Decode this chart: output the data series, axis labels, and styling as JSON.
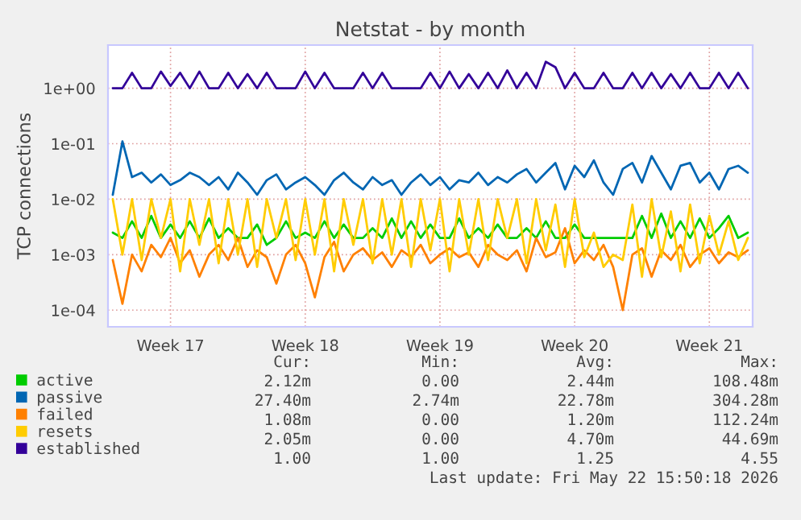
{
  "chart_data": {
    "type": "line",
    "title": "Netstat - by month",
    "ylabel": "TCP connections",
    "categories": [
      null,
      null,
      null,
      null,
      null,
      null,
      "Week 17",
      null,
      null,
      null,
      null,
      null,
      null,
      null,
      null,
      null,
      null,
      null,
      null,
      null,
      "Week 18",
      null,
      null,
      null,
      null,
      null,
      null,
      null,
      null,
      null,
      null,
      null,
      null,
      null,
      "Week 19",
      null,
      null,
      null,
      null,
      null,
      null,
      null,
      null,
      null,
      null,
      null,
      null,
      null,
      "Week 20",
      null,
      null,
      null,
      null,
      null,
      null,
      null,
      null,
      null,
      null,
      null,
      null,
      null,
      "Week 21",
      null,
      null,
      null,
      null
    ],
    "series": [
      {
        "name": "active",
        "color": "#00cc00",
        "values": [
          0.0025,
          0.002,
          0.004,
          0.002,
          0.005,
          0.002,
          0.0035,
          0.002,
          0.004,
          0.002,
          0.0045,
          0.002,
          0.003,
          0.002,
          0.002,
          0.0035,
          0.0015,
          0.002,
          0.004,
          0.002,
          0.0025,
          0.002,
          0.004,
          0.002,
          0.0035,
          0.002,
          0.002,
          0.003,
          0.002,
          0.0045,
          0.002,
          0.004,
          0.002,
          0.0035,
          0.002,
          0.002,
          0.0045,
          0.002,
          0.003,
          0.002,
          0.0035,
          0.002,
          0.002,
          0.003,
          0.002,
          0.004,
          0.002,
          0.002,
          0.0035,
          0.002,
          0.002,
          0.002,
          0.002,
          0.002,
          0.002,
          0.005,
          0.002,
          0.0055,
          0.002,
          0.004,
          0.002,
          0.0045,
          0.002,
          0.003,
          0.005,
          0.002,
          0.0025
        ]
      },
      {
        "name": "passive",
        "color": "#0066b3",
        "values": [
          0.012,
          0.11,
          0.025,
          0.03,
          0.02,
          0.028,
          0.018,
          0.022,
          0.03,
          0.025,
          0.018,
          0.025,
          0.015,
          0.03,
          0.02,
          0.012,
          0.022,
          0.028,
          0.015,
          0.02,
          0.025,
          0.018,
          0.012,
          0.022,
          0.03,
          0.02,
          0.015,
          0.025,
          0.018,
          0.022,
          0.012,
          0.02,
          0.028,
          0.018,
          0.025,
          0.015,
          0.022,
          0.02,
          0.03,
          0.018,
          0.025,
          0.02,
          0.028,
          0.035,
          0.02,
          0.03,
          0.045,
          0.015,
          0.04,
          0.025,
          0.05,
          0.02,
          0.012,
          0.035,
          0.045,
          0.02,
          0.06,
          0.03,
          0.015,
          0.04,
          0.045,
          0.02,
          0.03,
          0.015,
          0.035,
          0.04,
          0.03
        ]
      },
      {
        "name": "failed",
        "color": "#ff8000",
        "values": [
          0.0008,
          0.00013,
          0.001,
          0.0005,
          0.0015,
          0.0009,
          0.002,
          0.0007,
          0.0012,
          0.0004,
          0.001,
          0.0015,
          0.0008,
          0.002,
          0.0006,
          0.0012,
          0.0009,
          0.0003,
          0.001,
          0.0015,
          0.0007,
          0.00017,
          0.0009,
          0.0017,
          0.0005,
          0.001,
          0.0013,
          0.0008,
          0.0011,
          0.0006,
          0.0012,
          0.0009,
          0.0015,
          0.0007,
          0.001,
          0.0013,
          0.0009,
          0.0011,
          0.0006,
          0.0015,
          0.001,
          0.0008,
          0.0012,
          0.0005,
          0.002,
          0.0009,
          0.0011,
          0.003,
          0.0007,
          0.0012,
          0.0008,
          0.0015,
          0.0006,
          0.0001,
          0.001,
          0.0013,
          0.0004,
          0.0012,
          0.0008,
          0.0015,
          0.0006,
          0.001,
          0.0013,
          0.0007,
          0.0011,
          0.0009,
          0.0012
        ]
      },
      {
        "name": "resets",
        "color": "#ffcc00",
        "values": [
          0.01,
          0.001,
          0.01,
          0.0008,
          0.01,
          0.002,
          0.01,
          0.0005,
          0.01,
          0.0015,
          0.01,
          0.0007,
          0.01,
          0.001,
          0.01,
          0.0006,
          0.01,
          0.002,
          0.01,
          0.0008,
          0.01,
          0.001,
          0.01,
          0.0005,
          0.01,
          0.0015,
          0.01,
          0.0007,
          0.01,
          0.001,
          0.01,
          0.0006,
          0.01,
          0.0012,
          0.01,
          0.0005,
          0.01,
          0.001,
          0.01,
          0.0008,
          0.01,
          0.002,
          0.01,
          0.0007,
          0.01,
          0.0012,
          0.008,
          0.0006,
          0.01,
          0.0009,
          0.0025,
          0.0006,
          0.001,
          0.0008,
          0.008,
          0.0004,
          0.01,
          0.0009,
          0.006,
          0.0005,
          0.008,
          0.0007,
          0.005,
          0.001,
          0.004,
          0.0008,
          0.002
        ]
      },
      {
        "name": "established",
        "color": "#330099",
        "values": [
          1,
          1,
          1.9,
          1,
          1,
          2,
          1.1,
          1.9,
          1,
          2,
          1,
          1,
          1.9,
          1,
          1.8,
          1,
          1.9,
          1,
          1,
          1,
          2,
          1,
          1.9,
          1,
          1,
          1,
          1.9,
          1,
          1.9,
          1,
          1,
          1,
          1,
          1.9,
          1,
          2,
          1,
          1.8,
          1,
          1.9,
          1,
          2.1,
          1,
          1.9,
          1,
          3,
          2.4,
          1,
          1.9,
          1,
          1,
          1.9,
          1,
          1,
          1.9,
          1,
          1.9,
          1,
          1.8,
          1,
          1.9,
          1,
          1,
          1.9,
          1,
          1.9,
          1
        ]
      }
    ],
    "log": "y",
    "ylim": [
      5e-05,
      6
    ],
    "yticks": [
      {
        "value": 0.0001,
        "label": "1e-04"
      },
      {
        "value": 0.001,
        "label": "1e-03"
      },
      {
        "value": 0.01,
        "label": "1e-02"
      },
      {
        "value": 0.1,
        "label": "1e-01"
      },
      {
        "value": 1,
        "label": "1e+00"
      }
    ],
    "grid": true,
    "legend": "bottom",
    "line_style": "solid",
    "marker": "none",
    "annotations": [
      "Cur:",
      "Min:",
      "Avg:",
      "Max:",
      "2.12m",
      "0.00",
      "2.44m",
      "108.48m",
      "27.40m",
      "2.74m",
      "22.78m",
      "304.28m",
      "1.08m",
      "0.00",
      "1.20m",
      "112.24m",
      "2.05m",
      "0.00",
      "4.70m",
      "44.69m",
      "1.00",
      "1.00",
      "1.25",
      "4.55",
      "Last update: Fri May 22 15:50:18 2026"
    ]
  }
}
